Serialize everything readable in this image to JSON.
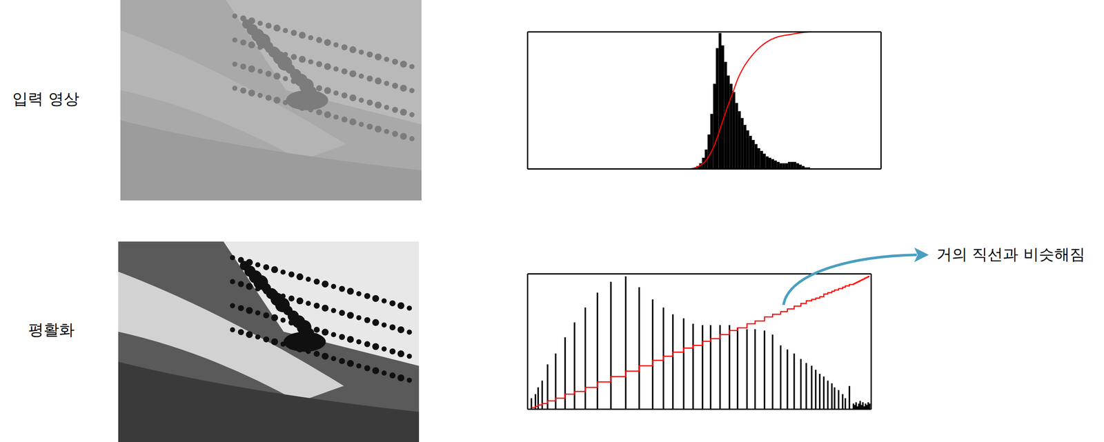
{
  "rows": [
    {
      "label": "입력 영상"
    },
    {
      "label": "평활화"
    }
  ],
  "chart_data": [
    {
      "type": "histogram",
      "xlim": [
        0,
        255
      ],
      "ylim": [
        0,
        100
      ],
      "tick_labels": false,
      "series": [
        {
          "type": "histogram",
          "color": "#000000",
          "bins": [
            120,
            122,
            124,
            126,
            128,
            130,
            132,
            134,
            136,
            138,
            140,
            142,
            144,
            146,
            148,
            150,
            152,
            154,
            156,
            158,
            160,
            162,
            164,
            166,
            168,
            170,
            172,
            174,
            176,
            178,
            180,
            182,
            184,
            186,
            188,
            190,
            192,
            194,
            196,
            198,
            200,
            202,
            204
          ],
          "values": [
            1,
            2,
            4,
            8,
            14,
            25,
            40,
            62,
            88,
            99,
            90,
            78,
            68,
            62,
            56,
            48,
            42,
            37,
            32,
            28,
            24,
            21,
            18,
            15,
            13,
            11,
            9,
            8,
            7,
            6,
            5,
            4,
            4,
            4,
            5,
            5,
            5,
            4,
            3,
            2,
            1,
            1
          ]
        },
        {
          "type": "line",
          "color": "#ff0000",
          "line_style": "smooth",
          "x": [
            118,
            124,
            128,
            132,
            136,
            140,
            144,
            148,
            152,
            156,
            160,
            166,
            172,
            180,
            190,
            200,
            210,
            255
          ],
          "values": [
            0,
            2,
            5,
            11,
            20,
            32,
            44,
            55,
            66,
            74,
            80,
            87,
            92,
            96,
            98,
            99.5,
            100,
            100
          ]
        }
      ]
    },
    {
      "type": "bar",
      "xlim": [
        0,
        255
      ],
      "ylim": [
        0,
        100
      ],
      "tick_labels": false,
      "annotation": "거의 직선과 비슷해짐",
      "x": [
        3,
        6,
        8,
        11,
        15,
        21,
        28,
        35,
        43,
        52,
        62,
        73,
        83,
        93,
        101,
        108,
        116,
        123,
        130,
        136,
        143,
        150,
        156,
        163,
        169,
        176,
        182,
        188,
        193,
        198,
        203,
        207,
        211,
        214,
        217,
        220,
        223,
        226,
        228,
        231,
        234,
        236,
        239,
        242,
        243,
        244,
        245,
        246,
        247,
        248,
        249,
        250,
        251,
        252,
        253,
        254
      ],
      "series": [
        {
          "type": "bar",
          "color": "#000000",
          "values": [
            8,
            11,
            16,
            21,
            33,
            41,
            53,
            64,
            75,
            86,
            94,
            98,
            90,
            81,
            75,
            70,
            67,
            63,
            62,
            62,
            62,
            62,
            60,
            59,
            59,
            58,
            55,
            47,
            44,
            41,
            37,
            34,
            32,
            29,
            26,
            24,
            21,
            19,
            16,
            14,
            11,
            8,
            17,
            4,
            3,
            5,
            2,
            4,
            6,
            3,
            5,
            2,
            4,
            3,
            5,
            4
          ]
        },
        {
          "type": "line",
          "color": "#ff0000",
          "line_style": "step",
          "values": [
            1,
            2,
            3,
            4,
            6,
            8,
            11,
            13,
            16,
            20,
            24,
            28,
            32,
            36,
            39,
            42,
            45,
            47,
            50,
            52,
            55,
            58,
            60,
            63,
            65,
            68,
            70,
            72,
            74,
            76,
            78,
            80,
            81,
            82,
            83,
            85,
            86,
            87,
            88,
            89,
            90,
            91,
            92,
            92.5,
            93,
            93.5,
            94,
            94.5,
            95,
            95.5,
            96,
            96.5,
            97,
            97.5,
            98,
            98
          ]
        }
      ]
    }
  ]
}
